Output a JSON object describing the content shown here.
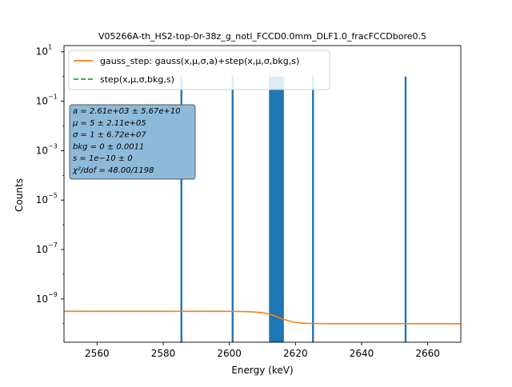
{
  "chart_data": {
    "type": "line",
    "title": "V05266A-th_HS2-top-0r-38z_g_notl_FCCD0.0mm_DLF1.0_fracFCCDbore0.5",
    "xlabel": "Energy (keV)",
    "ylabel": "Counts",
    "xlim": [
      2550,
      2670
    ],
    "ylim_log10": [
      -10.75,
      1.25
    ],
    "yscale": "log",
    "x_ticks": [
      2560,
      2580,
      2600,
      2620,
      2640,
      2660
    ],
    "y_ticks": [
      {
        "exp": 1,
        "label": "10"
      },
      {
        "exp": -1,
        "label": "10"
      },
      {
        "exp": -3,
        "label": "10"
      },
      {
        "exp": -5,
        "label": "10"
      },
      {
        "exp": -7,
        "label": "10"
      },
      {
        "exp": -9,
        "label": "10"
      }
    ],
    "y_tick_exp_labels": [
      "1",
      "−1",
      "−3",
      "−5",
      "−7",
      "−9"
    ],
    "legend": {
      "placement": "top-left",
      "entries": [
        {
          "label": "gauss_step: gauss(x,μ,σ,a)+step(x,μ,σ,bkg,s)",
          "color": "#ff7f0e",
          "style": "solid"
        },
        {
          "label": "step(x,μ,σ,bkg,s)",
          "color": "#2ca02c",
          "style": "dashed"
        }
      ]
    },
    "stats_box": {
      "lines": [
        "a = 2.61e+03 ± 5.67e+10",
        "μ = 5 ± 2.11e+05",
        "σ = 1 ± 6.72e+07",
        "bkg = 0 ± 0.0011",
        "s = 1e−10 ± 0",
        "χ²/dof = 48.00/1198"
      ],
      "facecolor": "#8ebad9"
    },
    "histogram": {
      "color": "#1f77b4",
      "spikes": [
        {
          "x": 2585.5,
          "y": 1
        },
        {
          "x": 2601.0,
          "y": 1
        },
        {
          "x": 2625.3,
          "y": 1
        },
        {
          "x": 2653.3,
          "y": 1
        }
      ],
      "band": {
        "x_start": 2612.0,
        "x_end": 2616.5,
        "y": 1
      },
      "band_light_peaks": [
        2612.3,
        2613.2,
        2614.0,
        2615.0,
        2616.0
      ]
    },
    "series": [
      {
        "name": "gauss_step",
        "color": "#ff7f0e",
        "x": [
          2550,
          2570,
          2590,
          2600,
          2605,
          2608,
          2610,
          2612,
          2614,
          2616,
          2618,
          2620,
          2622,
          2625,
          2630,
          2640,
          2670
        ],
        "log10_y": [
          -9.5,
          -9.5,
          -9.5,
          -9.5,
          -9.51,
          -9.53,
          -9.56,
          -9.61,
          -9.7,
          -9.8,
          -9.89,
          -9.95,
          -9.98,
          -9.99,
          -10.0,
          -10.0,
          -10.0
        ]
      }
    ]
  }
}
